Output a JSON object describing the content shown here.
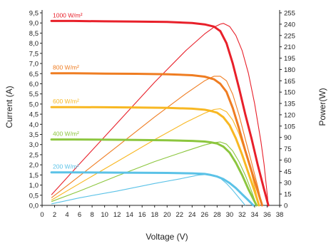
{
  "chart_data": {
    "type": "line",
    "xlabel": "Voltage (V)",
    "ylabel_left": "Current (A)",
    "ylabel_right": "Power(W)",
    "xlim": [
      0,
      38
    ],
    "ylim_left": [
      0,
      9.5
    ],
    "ylim_right": [
      0,
      255
    ],
    "xticks": [
      "0",
      "2",
      "4",
      "6",
      "8",
      "10",
      "12",
      "14",
      "16",
      "18",
      "20",
      "22",
      "24",
      "26",
      "28",
      "30",
      "32",
      "34",
      "36",
      "38"
    ],
    "yticks_left": [
      "0,0",
      "0,5",
      "1,0",
      "1,5",
      "2,0",
      "2,5",
      "3,0",
      "3,5",
      "4,0",
      "4,5",
      "5,0",
      "5,5",
      "6,0",
      "6,5",
      "7,0",
      "7,5",
      "8,0",
      "8,5",
      "9,0",
      "9,5"
    ],
    "yticks_right": [
      "0",
      "15",
      "30",
      "45",
      "60",
      "75",
      "90",
      "105",
      "120",
      "135",
      "150",
      "165",
      "180",
      "195",
      "210",
      "225",
      "240",
      "255"
    ],
    "grid": false,
    "curve_labels": [
      "1000 W/m²",
      "800 W/m²",
      "600 W/m²",
      "400 W/m²",
      "200 W/m²"
    ],
    "colors": [
      "#e8202a",
      "#ef7d22",
      "#f8b823",
      "#8cc63e",
      "#5bc2e7"
    ],
    "series": [
      {
        "name": "1000 W/m²",
        "current": {
          "x": [
            1.5,
            5,
            10,
            15,
            20,
            24,
            26,
            27.5,
            28.5,
            29.5,
            30.5,
            31.5,
            32.5,
            33.5,
            34.5,
            35.5,
            36.2
          ],
          "y": [
            9.1,
            9.1,
            9.08,
            9.07,
            9.05,
            9.0,
            8.93,
            8.82,
            8.6,
            8.0,
            7.0,
            5.8,
            4.5,
            3.3,
            2.0,
            0.8,
            0
          ]
        },
        "power": {
          "x": [
            1.5,
            6,
            12,
            18,
            23,
            26,
            27.5,
            28.5,
            29,
            30,
            31,
            32,
            33,
            34,
            35,
            35.5,
            36.2
          ],
          "y": [
            14,
            55,
            109,
            163,
            205,
            227,
            236,
            240,
            241,
            237,
            225,
            205,
            175,
            135,
            85,
            55,
            0
          ]
        }
      },
      {
        "name": "800 W/m²",
        "current": {
          "x": [
            1.5,
            5,
            10,
            15,
            20,
            24,
            26,
            27.5,
            28.5,
            29.5,
            30.5,
            31.5,
            32.5,
            33.5,
            34.5,
            35.2
          ],
          "y": [
            6.52,
            6.52,
            6.5,
            6.49,
            6.47,
            6.42,
            6.35,
            6.22,
            6.0,
            5.6,
            4.8,
            3.8,
            2.7,
            1.7,
            0.7,
            0
          ]
        },
        "power": {
          "x": [
            1.5,
            6,
            12,
            18,
            23,
            26,
            27.5,
            28.5,
            29.5,
            30.5,
            31.5,
            32.5,
            33.5,
            34.5,
            35.2
          ],
          "y": [
            10,
            39,
            78,
            117,
            148,
            165,
            171,
            171,
            165,
            147,
            120,
            88,
            57,
            25,
            0
          ]
        }
      },
      {
        "name": "600 W/m²",
        "current": {
          "x": [
            1.5,
            5,
            10,
            15,
            20,
            24,
            26,
            27,
            28,
            29,
            30,
            31,
            32,
            33,
            34,
            34.7
          ],
          "y": [
            4.85,
            4.85,
            4.84,
            4.83,
            4.81,
            4.77,
            4.72,
            4.66,
            4.57,
            4.35,
            3.95,
            3.3,
            2.5,
            1.6,
            0.7,
            0
          ]
        },
        "power": {
          "x": [
            1.5,
            6,
            12,
            18,
            23,
            26,
            27.5,
            28.5,
            29.5,
            30.5,
            31.5,
            32.5,
            33.5,
            34.7
          ],
          "y": [
            7,
            29,
            58,
            87,
            110,
            122,
            127,
            128,
            124,
            113,
            95,
            70,
            42,
            0
          ]
        }
      },
      {
        "name": "400 W/m²",
        "current": {
          "x": [
            1.5,
            5,
            10,
            15,
            20,
            24,
            26,
            27,
            28,
            29,
            30,
            31,
            32,
            33,
            34.3
          ],
          "y": [
            3.25,
            3.25,
            3.24,
            3.23,
            3.21,
            3.18,
            3.15,
            3.11,
            3.05,
            2.9,
            2.6,
            2.1,
            1.5,
            0.8,
            0
          ]
        },
        "power": {
          "x": [
            1.5,
            6,
            12,
            18,
            23,
            26,
            27.5,
            28.5,
            29.5,
            30.5,
            31.5,
            32.5,
            33.5,
            34.3
          ],
          "y": [
            5,
            19,
            39,
            58,
            72,
            80,
            83,
            84,
            81,
            72,
            58,
            40,
            19,
            0
          ]
        }
      },
      {
        "name": "200 W/m²",
        "current": {
          "x": [
            1.5,
            5,
            10,
            15,
            20,
            24,
            26,
            27,
            28,
            29,
            30,
            31,
            32,
            33,
            33.8
          ],
          "y": [
            1.63,
            1.63,
            1.62,
            1.61,
            1.6,
            1.58,
            1.55,
            1.5,
            1.42,
            1.3,
            1.1,
            0.85,
            0.55,
            0.25,
            0
          ]
        },
        "power": {
          "x": [
            1.5,
            6,
            12,
            18,
            22,
            25,
            26.5,
            27.5,
            28.5,
            29.5,
            30.5,
            31.5,
            32.5
          ],
          "y": [
            2,
            10,
            19,
            29,
            35,
            40,
            41,
            40,
            36,
            29,
            20,
            10,
            0
          ]
        }
      }
    ]
  }
}
